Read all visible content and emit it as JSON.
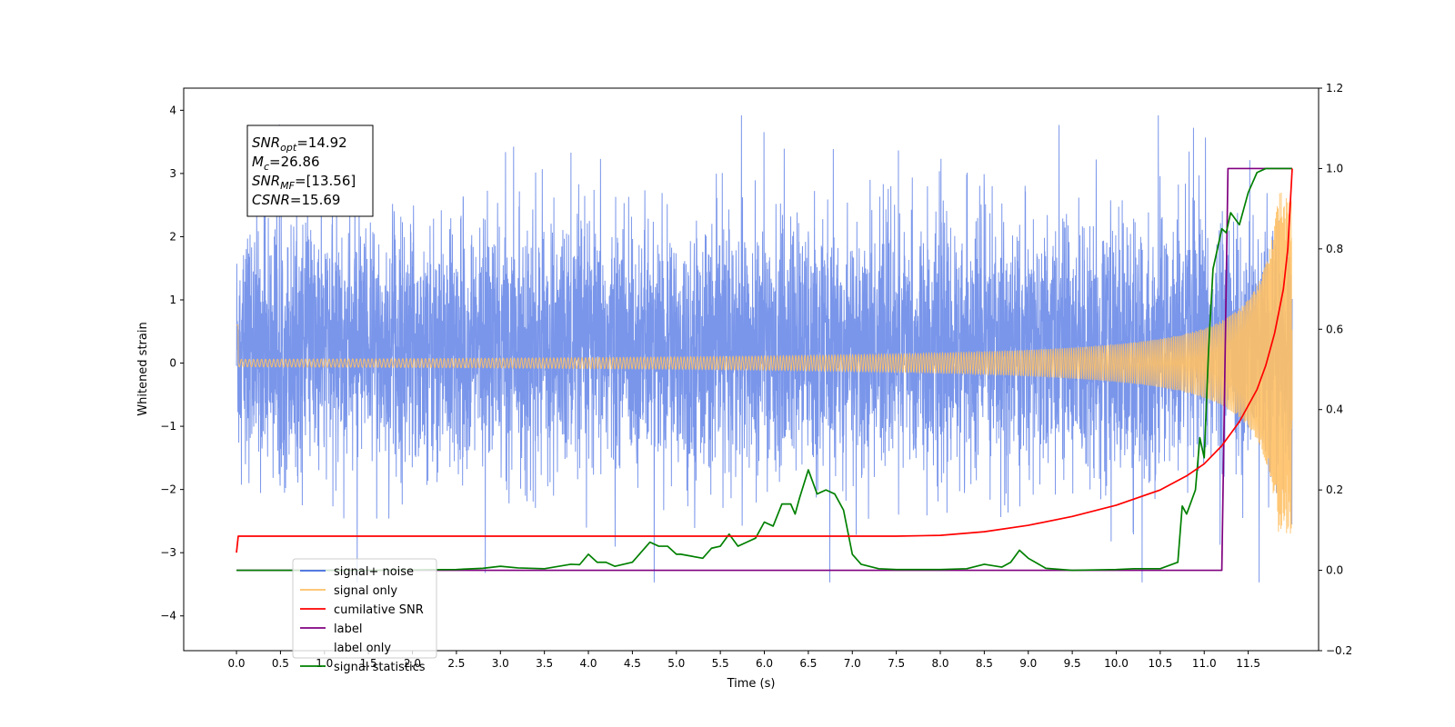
{
  "chart_data": {
    "type": "line",
    "title": "",
    "xlabel": "Time (s)",
    "ylabel": "Whitened strain",
    "y2label": "",
    "xlim": [
      -0.6,
      12.3
    ],
    "ylim": [
      -4.55,
      4.35
    ],
    "y2lim": [
      -0.2,
      1.2
    ],
    "xticks": [
      0.0,
      0.5,
      1.0,
      1.5,
      2.0,
      2.5,
      3.0,
      3.5,
      4.0,
      4.5,
      5.0,
      5.5,
      6.0,
      6.5,
      7.0,
      7.5,
      8.0,
      8.5,
      9.0,
      9.5,
      10.0,
      10.5,
      11.0,
      11.5
    ],
    "xtick_labels": [
      "0.0",
      "0.5",
      "1.0",
      "1.5",
      "2.0",
      "2.5",
      "3.0",
      "3.5",
      "4.0",
      "4.5",
      "5.0",
      "5.5",
      "6.0",
      "6.5",
      "7.0",
      "7.5",
      "8.0",
      "8.5",
      "9.0",
      "9.5",
      "10.0",
      "10.5",
      "11.0",
      "11.5"
    ],
    "yticks": [
      4,
      3,
      2,
      1,
      0,
      -1,
      -2,
      -3,
      -4
    ],
    "ytick_labels": [
      "4",
      "3",
      "2",
      "1",
      "0",
      "−1",
      "−2",
      "−3",
      "−4"
    ],
    "y2ticks": [
      1.2,
      1.0,
      0.8,
      0.6,
      0.4,
      0.2,
      0.0,
      -0.2
    ],
    "y2tick_labels": [
      "1.2",
      "1.0",
      "0.8",
      "0.6",
      "0.4",
      "0.2",
      "0.0",
      "−0.2"
    ],
    "grid": false,
    "legend_position": "lower-left",
    "annotation": {
      "lines": [
        {
          "sym": "SNR",
          "sub": "opt",
          "value": "=14.92"
        },
        {
          "sym": "M",
          "sub": "c",
          "value": "=26.86"
        },
        {
          "sym": "SNR",
          "sub": "MF",
          "value": "=[13.56]"
        },
        {
          "sym": "CSNR",
          "sub": "",
          "value": "=15.69"
        }
      ]
    },
    "series": [
      {
        "name": "signal+ noise",
        "color": "#4169e1",
        "axis": "left",
        "style": "noise",
        "x_range": [
          0.0,
          12.0
        ],
        "typical_peak": 2.3,
        "max": 3.92,
        "min": -3.47
      },
      {
        "name": "signal only",
        "color": "#ffc166",
        "axis": "left",
        "style": "chirp",
        "x_range": [
          0.0,
          12.0
        ],
        "final_amplitude": 2.7
      },
      {
        "name": "cumilative SNR",
        "color": "#ff0000",
        "axis": "right",
        "x": [
          0.0,
          0.02,
          7.5,
          8.0,
          8.5,
          9.0,
          9.5,
          10.0,
          10.5,
          10.8,
          11.0,
          11.2,
          11.4,
          11.6,
          11.7,
          11.8,
          11.9,
          11.95,
          12.0
        ],
        "y": [
          0.044,
          0.085,
          0.085,
          0.087,
          0.096,
          0.112,
          0.134,
          0.162,
          0.2,
          0.235,
          0.265,
          0.31,
          0.37,
          0.45,
          0.51,
          0.59,
          0.7,
          0.8,
          1.0
        ]
      },
      {
        "name": "label",
        "color": "#800080",
        "axis": "right",
        "x": [
          0.0,
          11.2,
          11.27,
          12.0
        ],
        "y": [
          0.0,
          0.0,
          1.0,
          1.0
        ]
      },
      {
        "name": "label only",
        "color": "#ffffff",
        "axis": "right",
        "x": [],
        "y": []
      },
      {
        "name": "signal statistics",
        "color": "#008000",
        "axis": "right",
        "x": [
          0.0,
          1.5,
          2.5,
          2.8,
          3.0,
          3.2,
          3.5,
          3.8,
          3.9,
          4.0,
          4.1,
          4.2,
          4.3,
          4.5,
          4.7,
          4.8,
          4.9,
          5.0,
          5.05,
          5.3,
          5.4,
          5.5,
          5.6,
          5.7,
          5.8,
          5.9,
          6.0,
          6.1,
          6.2,
          6.3,
          6.35,
          6.4,
          6.5,
          6.6,
          6.7,
          6.8,
          6.9,
          7.0,
          7.1,
          7.3,
          7.5,
          8.0,
          8.3,
          8.5,
          8.7,
          8.8,
          8.9,
          9.0,
          9.2,
          9.5,
          10.0,
          10.2,
          10.5,
          10.7,
          10.75,
          10.8,
          10.9,
          10.95,
          11.0,
          11.05,
          11.1,
          11.2,
          11.25,
          11.3,
          11.4,
          11.5,
          11.6,
          11.7,
          11.8,
          11.9,
          12.0
        ],
        "y": [
          0.0,
          0.0,
          0.002,
          0.005,
          0.01,
          0.006,
          0.004,
          0.015,
          0.014,
          0.04,
          0.02,
          0.02,
          0.01,
          0.02,
          0.07,
          0.06,
          0.06,
          0.04,
          0.04,
          0.03,
          0.055,
          0.06,
          0.09,
          0.06,
          0.07,
          0.08,
          0.12,
          0.11,
          0.165,
          0.165,
          0.14,
          0.18,
          0.25,
          0.19,
          0.2,
          0.19,
          0.15,
          0.04,
          0.015,
          0.004,
          0.002,
          0.002,
          0.004,
          0.015,
          0.008,
          0.02,
          0.05,
          0.03,
          0.005,
          0.0,
          0.002,
          0.004,
          0.004,
          0.02,
          0.16,
          0.14,
          0.2,
          0.33,
          0.28,
          0.55,
          0.75,
          0.85,
          0.84,
          0.89,
          0.86,
          0.94,
          0.99,
          1.0,
          1.0,
          1.0,
          1.0
        ]
      }
    ]
  }
}
